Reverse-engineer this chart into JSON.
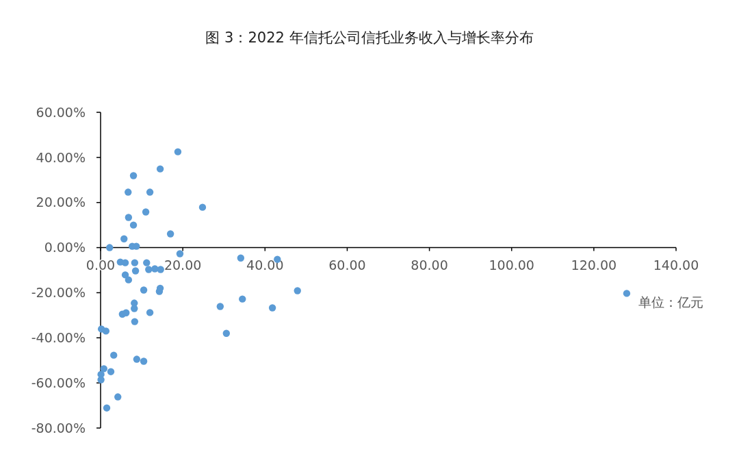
{
  "chart_data": {
    "type": "scatter",
    "title": "图 3：2022 年信托公司信托业务收入与增长率分布",
    "xlabel": "单位：亿元",
    "x": [
      18.8,
      14.5,
      8.0,
      6.7,
      12.0,
      11.0,
      6.8,
      8.0,
      17.0,
      24.8,
      5.7,
      2.2,
      7.7,
      8.7,
      19.3,
      34.1,
      43.0,
      4.8,
      6.0,
      8.3,
      11.2,
      8.5,
      11.7,
      13.2,
      14.6,
      6.0,
      6.8,
      10.5,
      14.5,
      14.3,
      8.2,
      8.2,
      5.3,
      6.2,
      12.0,
      8.3,
      0.2,
      1.3,
      3.2,
      8.8,
      10.5,
      0.8,
      0.1,
      2.5,
      0.1,
      4.2,
      1.5,
      29.1,
      30.6,
      34.5,
      41.8,
      47.9,
      128.0
    ],
    "series": [
      {
        "color": "#5b9bd5",
        "values": [
          42.5,
          34.9,
          31.9,
          24.6,
          24.6,
          15.8,
          13.4,
          10.0,
          6.1,
          17.9,
          3.9,
          0,
          0.6,
          0.6,
          -2.7,
          -4.6,
          -5.2,
          -6.4,
          -6.7,
          -6.7,
          -6.7,
          -10.3,
          -9.7,
          -9.4,
          -9.7,
          -12.1,
          -14.3,
          -18.8,
          -18.0,
          -19.4,
          -24.6,
          -27.0,
          -29.5,
          -28.9,
          -28.8,
          -32.8,
          -36.1,
          -37.0,
          -47.7,
          -49.5,
          -50.4,
          -53.7,
          -56.2,
          -55.0,
          -58.6,
          -66.2,
          -71.1,
          -26.1,
          -38.0,
          -22.8,
          -26.7,
          -19.1,
          -20.3
        ]
      }
    ],
    "xlim": [
      0,
      140
    ],
    "xticks": [
      {
        "value": 0,
        "label": "0.00"
      },
      {
        "value": 20,
        "label": "20.00"
      },
      {
        "value": 40,
        "label": "40.00"
      },
      {
        "value": 60,
        "label": "60.00"
      },
      {
        "value": 80,
        "label": "80.00"
      },
      {
        "value": 100,
        "label": "100.00"
      },
      {
        "value": 120,
        "label": "120.00"
      },
      {
        "value": 140,
        "label": "140.00"
      }
    ],
    "ylim": [
      -80,
      60
    ],
    "yticks": [
      {
        "value": -80,
        "label": "-80.00%"
      },
      {
        "value": -60,
        "label": "-60.00%"
      },
      {
        "value": -40,
        "label": "-40.00%"
      },
      {
        "value": -20,
        "label": "-20.00%"
      },
      {
        "value": 0,
        "label": "0.00%"
      },
      {
        "value": 20,
        "label": "20.00%"
      },
      {
        "value": 40,
        "label": "40.00%"
      },
      {
        "value": 60,
        "label": "60.00%"
      }
    ],
    "marker": "circle",
    "grid": false
  }
}
